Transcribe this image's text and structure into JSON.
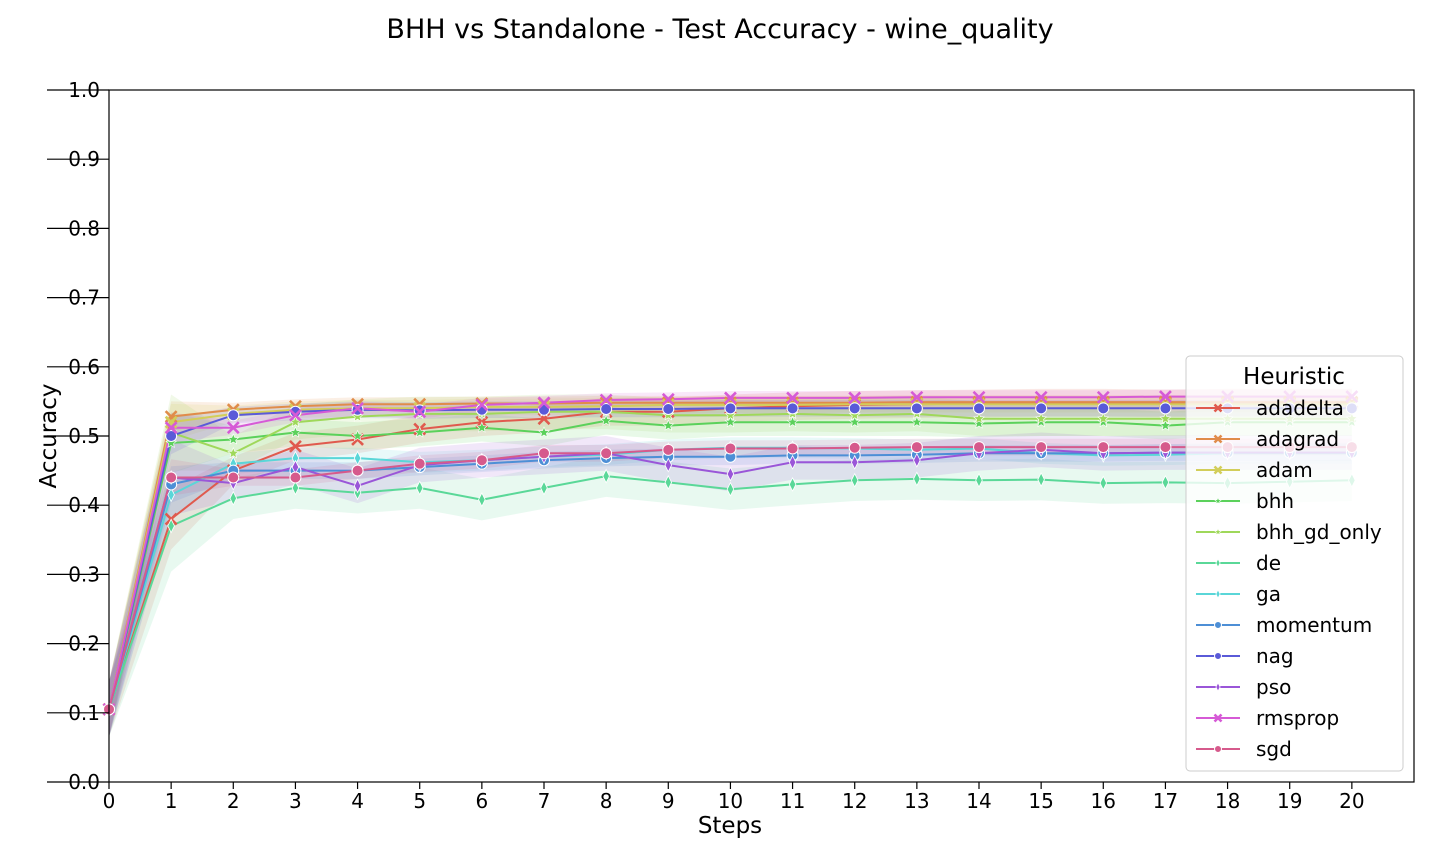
{
  "chart_data": {
    "type": "line",
    "title": "BHH vs Standalone - Test Accuracy - wine_quality",
    "xlabel": "Steps",
    "ylabel": "Accuracy",
    "xlim": [
      0,
      21
    ],
    "ylim": [
      0.0,
      1.0
    ],
    "x": [
      0,
      1,
      2,
      3,
      4,
      5,
      6,
      7,
      8,
      9,
      10,
      11,
      12,
      13,
      14,
      15,
      16,
      17,
      18,
      19,
      20
    ],
    "xticks": [
      "0",
      "1",
      "2",
      "3",
      "4",
      "5",
      "6",
      "7",
      "8",
      "9",
      "10",
      "11",
      "12",
      "13",
      "14",
      "15",
      "16",
      "17",
      "18",
      "19",
      "20"
    ],
    "yticks": [
      "0.0",
      "0.1",
      "0.2",
      "0.3",
      "0.4",
      "0.5",
      "0.6",
      "0.7",
      "0.8",
      "0.9",
      "1.0"
    ],
    "grid": false,
    "legend": {
      "title": "Heuristic",
      "placement": "center-right"
    },
    "series": [
      {
        "name": "adadelta",
        "color": "#e05a4e",
        "marker": "x",
        "band": 0.02,
        "values": [
          0.105,
          0.38,
          0.45,
          0.485,
          0.495,
          0.51,
          0.52,
          0.525,
          0.535,
          0.535,
          0.54,
          0.543,
          0.545,
          0.546,
          0.547,
          0.548,
          0.548,
          0.547,
          0.548,
          0.548,
          0.548
        ]
      },
      {
        "name": "adagrad",
        "color": "#e08c4a",
        "marker": "x",
        "band": 0.01,
        "values": [
          0.105,
          0.528,
          0.538,
          0.543,
          0.546,
          0.546,
          0.547,
          0.547,
          0.548,
          0.548,
          0.548,
          0.548,
          0.548,
          0.549,
          0.549,
          0.549,
          0.549,
          0.549,
          0.549,
          0.549,
          0.549
        ]
      },
      {
        "name": "adam",
        "color": "#d2ce5a",
        "marker": "x",
        "band": 0.012,
        "values": [
          0.105,
          0.52,
          0.532,
          0.538,
          0.54,
          0.54,
          0.542,
          0.542,
          0.543,
          0.545,
          0.545,
          0.545,
          0.546,
          0.546,
          0.546,
          0.546,
          0.546,
          0.546,
          0.546,
          0.546,
          0.546
        ]
      },
      {
        "name": "bhh",
        "color": "#5bd15b",
        "marker": "star",
        "band": 0.02,
        "values": [
          0.105,
          0.49,
          0.495,
          0.505,
          0.5,
          0.505,
          0.512,
          0.505,
          0.522,
          0.515,
          0.52,
          0.52,
          0.52,
          0.52,
          0.518,
          0.52,
          0.52,
          0.515,
          0.52,
          0.52,
          0.52
        ]
      },
      {
        "name": "bhh_gd_only",
        "color": "#9fd85a",
        "marker": "star",
        "band": 0.025,
        "values": [
          0.105,
          0.505,
          0.475,
          0.52,
          0.528,
          0.532,
          0.532,
          0.535,
          0.535,
          0.53,
          0.53,
          0.532,
          0.53,
          0.532,
          0.525,
          0.525,
          0.525,
          0.525,
          0.525,
          0.525,
          0.525
        ]
      },
      {
        "name": "de",
        "color": "#5ad898",
        "marker": "thin_diamond",
        "band": 0.03,
        "values": [
          0.105,
          0.37,
          0.41,
          0.425,
          0.418,
          0.425,
          0.408,
          0.425,
          0.442,
          0.433,
          0.423,
          0.43,
          0.436,
          0.438,
          0.436,
          0.437,
          0.432,
          0.433,
          0.432,
          0.434,
          0.436
        ]
      },
      {
        "name": "ga",
        "color": "#5ad6d8",
        "marker": "thin_diamond",
        "band": 0.015,
        "values": [
          0.105,
          0.415,
          0.46,
          0.468,
          0.468,
          0.462,
          0.465,
          0.47,
          0.473,
          0.48,
          0.483,
          0.483,
          0.482,
          0.48,
          0.482,
          0.475,
          0.472,
          0.473,
          0.475,
          0.475,
          0.475
        ]
      },
      {
        "name": "momentum",
        "color": "#4d8fd6",
        "marker": "circle",
        "band": 0.012,
        "values": [
          0.105,
          0.43,
          0.45,
          0.45,
          0.45,
          0.455,
          0.46,
          0.465,
          0.468,
          0.47,
          0.47,
          0.472,
          0.472,
          0.473,
          0.475,
          0.475,
          0.475,
          0.476,
          0.476,
          0.476,
          0.476
        ]
      },
      {
        "name": "nag",
        "color": "#5a5ad8",
        "marker": "circle",
        "band": 0.012,
        "values": [
          0.105,
          0.5,
          0.53,
          0.535,
          0.538,
          0.537,
          0.538,
          0.538,
          0.539,
          0.539,
          0.54,
          0.54,
          0.54,
          0.54,
          0.54,
          0.54,
          0.54,
          0.54,
          0.54,
          0.54,
          0.54
        ]
      },
      {
        "name": "pso",
        "color": "#9a56d8",
        "marker": "thin_diamond",
        "band": 0.025,
        "values": [
          0.105,
          0.44,
          0.432,
          0.455,
          0.428,
          0.458,
          0.465,
          0.47,
          0.475,
          0.458,
          0.445,
          0.462,
          0.462,
          0.465,
          0.475,
          0.48,
          0.475,
          0.476,
          0.476,
          0.476,
          0.476
        ]
      },
      {
        "name": "rmsprop",
        "color": "#d65ad6",
        "marker": "x",
        "band": 0.01,
        "values": [
          0.105,
          0.512,
          0.512,
          0.53,
          0.54,
          0.535,
          0.545,
          0.548,
          0.552,
          0.553,
          0.555,
          0.555,
          0.555,
          0.556,
          0.556,
          0.556,
          0.556,
          0.557,
          0.557,
          0.557,
          0.557
        ]
      },
      {
        "name": "sgd",
        "color": "#d65a8c",
        "marker": "circle",
        "band": 0.012,
        "values": [
          0.105,
          0.44,
          0.44,
          0.44,
          0.45,
          0.46,
          0.465,
          0.475,
          0.475,
          0.48,
          0.482,
          0.482,
          0.483,
          0.484,
          0.484,
          0.484,
          0.484,
          0.484,
          0.484,
          0.484,
          0.484
        ]
      }
    ]
  }
}
